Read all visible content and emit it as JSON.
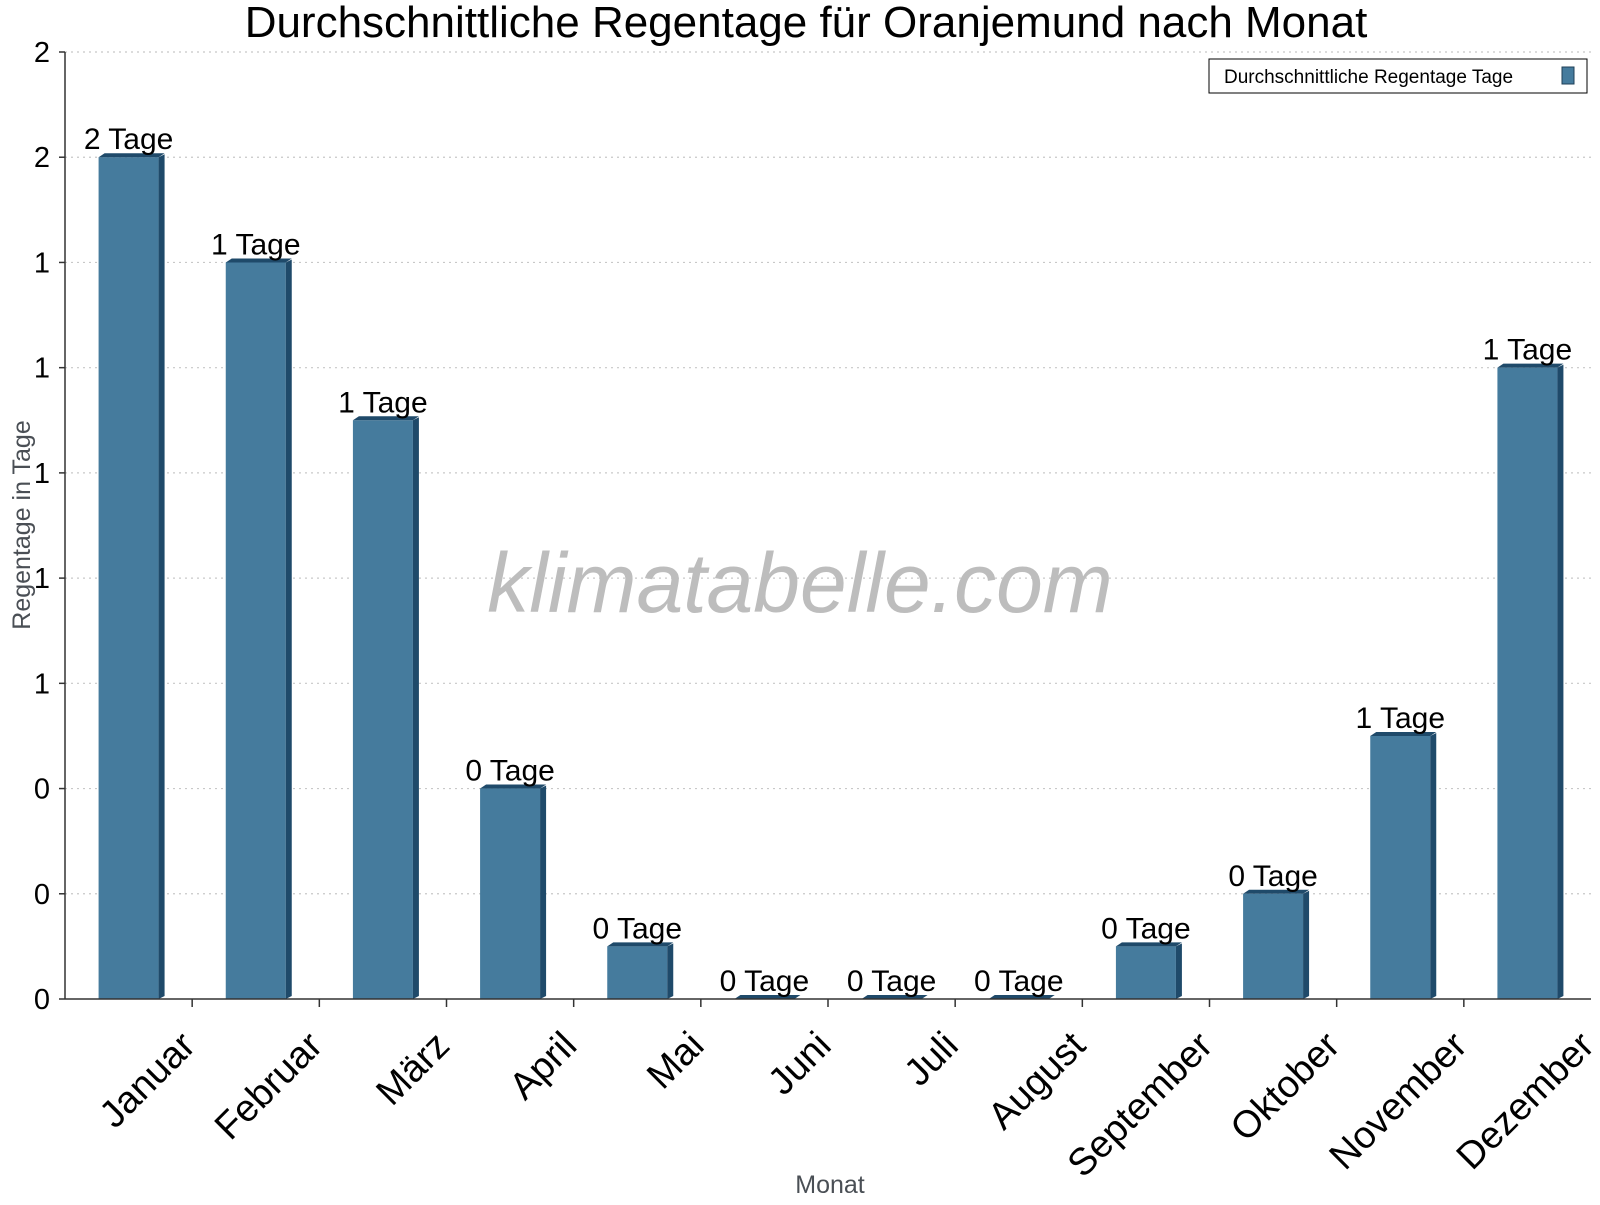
{
  "chart_data": {
    "type": "bar",
    "title": "Durchschnittliche Regentage für Oranjemund nach Monat",
    "xlabel": "Monat",
    "ylabel": "Regentage in Tage",
    "ylim": [
      0,
      1.8
    ],
    "y_ticks": [
      {
        "value": 0,
        "label": "0"
      },
      {
        "value": 0.2,
        "label": "0"
      },
      {
        "value": 0.4,
        "label": "0"
      },
      {
        "value": 0.6,
        "label": "1"
      },
      {
        "value": 0.8,
        "label": "1"
      },
      {
        "value": 1.0,
        "label": "1"
      },
      {
        "value": 1.2,
        "label": "1"
      },
      {
        "value": 1.4,
        "label": "1"
      },
      {
        "value": 1.6,
        "label": "2"
      },
      {
        "value": 1.8,
        "label": "2"
      }
    ],
    "grid": true,
    "legend_position": "top-right",
    "categories": [
      "Januar",
      "Februar",
      "März",
      "April",
      "Mai",
      "Juni",
      "Juli",
      "August",
      "September",
      "Oktober",
      "November",
      "Dezember"
    ],
    "series": [
      {
        "name": "Durchschnittliche Regentage Tage",
        "color": "#457b9d",
        "values": [
          1.6,
          1.4,
          1.1,
          0.4,
          0.1,
          0.0,
          0.0,
          0.0,
          0.1,
          0.2,
          0.5,
          1.2
        ],
        "data_labels": [
          "2 Tage",
          "1 Tage",
          "1 Tage",
          "0 Tage",
          "0 Tage",
          "0 Tage",
          "0 Tage",
          "0 Tage",
          "0 Tage",
          "0 Tage",
          "1 Tage",
          "1 Tage"
        ]
      }
    ],
    "watermark": "klimatabelle.com"
  }
}
